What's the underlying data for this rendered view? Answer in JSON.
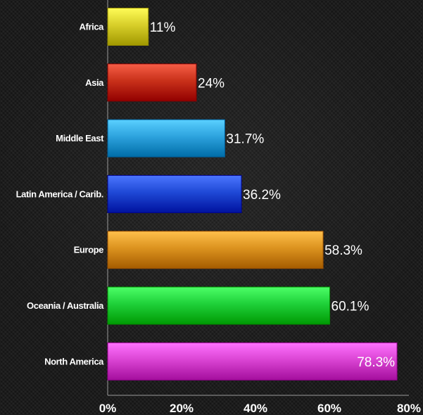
{
  "chart_data": {
    "type": "bar",
    "orientation": "horizontal",
    "title": "",
    "xlabel": "",
    "ylabel": "",
    "categories": [
      "Africa",
      "Asia",
      "Middle East",
      "Latin America / Carib.",
      "Europe",
      "Oceania / Australia",
      "North America"
    ],
    "values": [
      11,
      24,
      31.7,
      36.2,
      58.3,
      60.1,
      78.3
    ],
    "value_labels": [
      "11%",
      "24%",
      "31.7%",
      "36.2%",
      "58.3%",
      "60.1%",
      "78.3%"
    ],
    "colors": [
      "#d8cf2a",
      "#c9311a",
      "#2da3de",
      "#1f49d6",
      "#dc931f",
      "#1fd13a",
      "#db45d4"
    ],
    "xlim": [
      0,
      80
    ],
    "ticks": [
      0,
      20,
      40,
      60,
      80
    ],
    "tick_labels": [
      "0%",
      "20%",
      "40%",
      "60%",
      "80%"
    ],
    "grid": false,
    "legend": "none"
  }
}
